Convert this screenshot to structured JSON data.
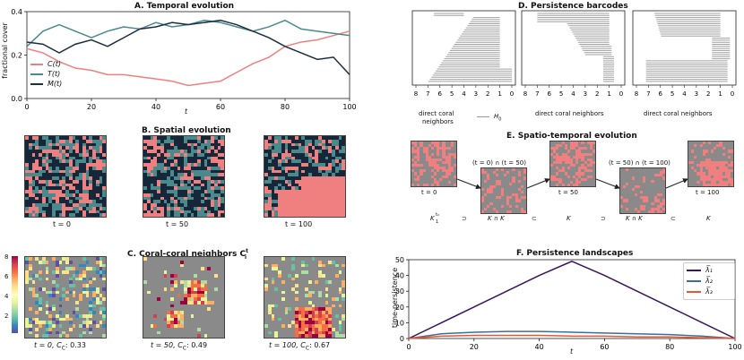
{
  "panel_a": {
    "title": "A. Temporal evolution",
    "ylabel": "fractional cover",
    "xlabel": "t",
    "legend": [
      "C(t)",
      "T(t)",
      "M(t)"
    ],
    "colors": {
      "C": "#f08080",
      "T": "#4a8a8c",
      "M": "#1c2f40"
    }
  },
  "panel_b": {
    "title": "B. Spatial evolution",
    "labels": [
      "t = 0",
      "t = 50",
      "t = 100"
    ],
    "colors": {
      "coral": "#f08080",
      "turf": "#4a8a8c",
      "macro": "#17273a"
    }
  },
  "panel_c": {
    "title": "C. Coral-coral neighbors C",
    "title_sup": "t",
    "title_sub": "i",
    "labels": [
      "t = 0, C",
      ": 0.33",
      "t = 50, C",
      ": 0.49",
      "t = 100, C",
      ": 0.67"
    ],
    "label_sub": "C",
    "colorbar_ticks": [
      "8",
      "6",
      "4",
      "2"
    ]
  },
  "panel_d": {
    "title": "D. Persistence barcodes",
    "xlabels": [
      "direct coral",
      "neighbors",
      "direct coral neighbors",
      "direct coral neighbors"
    ],
    "legend": "H",
    "legend_sub": "0",
    "ticks": [
      "8",
      "7",
      "6",
      "5",
      "4",
      "3",
      "2",
      "1",
      "0"
    ]
  },
  "panel_e": {
    "title": "E. Spatio-temporal evolution",
    "frame_labels": [
      "t = 0",
      "t = 50",
      "t = 100"
    ],
    "intersections": [
      "(t = 0) ∩ (t = 50)",
      "(t = 50) ∩ (t = 100)"
    ],
    "filtration": [
      "K",
      "⊃",
      "K ∩ K",
      "⊂",
      "K",
      "⊃",
      "K ∩ K",
      "⊂",
      "K"
    ]
  },
  "panel_f": {
    "title": "F. Persistence landscapes",
    "ylabel": "time-persistence",
    "xlabel": "t",
    "legend": [
      "λ̅₁",
      "λ̅₂",
      "λ̅₃"
    ],
    "colors": [
      "#3a1560",
      "#3b6e9e",
      "#e8572f"
    ]
  },
  "chart_data": [
    {
      "type": "line",
      "title": "A. Temporal evolution",
      "xlabel": "t",
      "ylabel": "fractional cover",
      "xlim": [
        0,
        100
      ],
      "ylim": [
        0,
        0.4
      ],
      "xticks": [
        0,
        20,
        40,
        60,
        80,
        100
      ],
      "yticks": [
        0.0,
        0.2,
        0.4
      ],
      "x": [
        0,
        5,
        10,
        15,
        20,
        25,
        30,
        35,
        40,
        45,
        50,
        55,
        60,
        65,
        70,
        75,
        80,
        85,
        90,
        95,
        100
      ],
      "series": [
        {
          "name": "C(t)",
          "values": [
            0.23,
            0.21,
            0.17,
            0.14,
            0.13,
            0.11,
            0.11,
            0.1,
            0.09,
            0.08,
            0.06,
            0.07,
            0.08,
            0.12,
            0.16,
            0.19,
            0.24,
            0.26,
            0.27,
            0.29,
            0.31
          ]
        },
        {
          "name": "T(t)",
          "values": [
            0.24,
            0.31,
            0.34,
            0.31,
            0.28,
            0.31,
            0.33,
            0.32,
            0.35,
            0.33,
            0.34,
            0.36,
            0.35,
            0.33,
            0.31,
            0.33,
            0.36,
            0.32,
            0.31,
            0.3,
            0.29
          ]
        },
        {
          "name": "M(t)",
          "values": [
            0.26,
            0.25,
            0.21,
            0.25,
            0.27,
            0.24,
            0.28,
            0.32,
            0.33,
            0.35,
            0.34,
            0.35,
            0.36,
            0.34,
            0.31,
            0.28,
            0.24,
            0.21,
            0.18,
            0.19,
            0.11
          ]
        }
      ]
    },
    {
      "type": "line",
      "title": "F. Persistence landscapes",
      "xlabel": "t",
      "ylabel": "time-persistence",
      "xlim": [
        0,
        100
      ],
      "ylim": [
        0,
        50
      ],
      "xticks": [
        0,
        20,
        40,
        60,
        80,
        100
      ],
      "yticks": [
        0,
        10,
        20,
        30,
        40,
        50
      ],
      "x": [
        0,
        10,
        20,
        30,
        40,
        50,
        60,
        70,
        80,
        90,
        100
      ],
      "series": [
        {
          "name": "lambda1",
          "values": [
            0,
            10,
            20,
            30,
            40,
            49,
            40,
            30,
            20,
            10,
            0
          ]
        },
        {
          "name": "lambda2",
          "values": [
            0,
            3,
            4,
            4.5,
            4.5,
            4,
            3.5,
            3,
            2.5,
            1.5,
            0
          ]
        },
        {
          "name": "lambda3",
          "values": [
            0,
            1.5,
            2,
            2,
            2,
            1.5,
            1.5,
            1,
            1,
            0.5,
            0
          ]
        }
      ]
    }
  ]
}
